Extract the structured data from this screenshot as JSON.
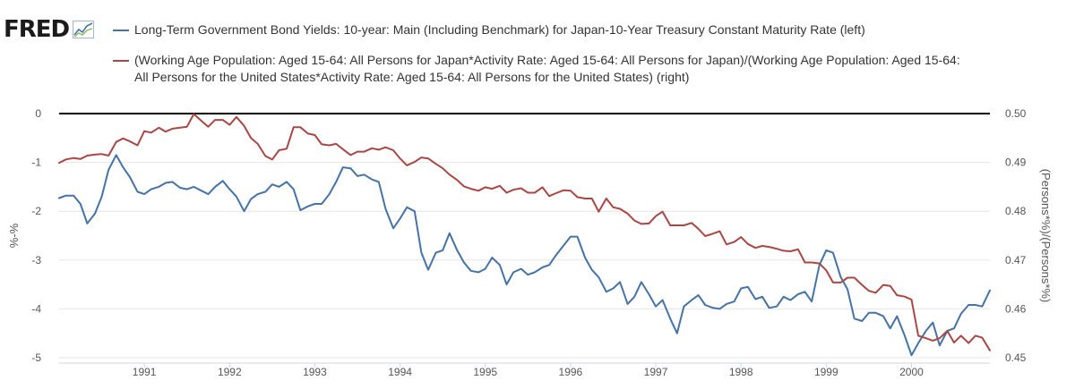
{
  "logo": {
    "text": "FRED",
    "icon": "chart-graph-icon"
  },
  "legend": [
    {
      "label": "Long-Term Government Bond Yields: 10-year: Main (Including Benchmark) for Japan-10-Year Treasury Constant Maturity Rate (left)",
      "color": "#4572a7"
    },
    {
      "label": "(Working Age Population: Aged 15-64: All Persons for Japan*Activity Rate: Aged 15-64: All Persons for Japan)/(Working Age Population: Aged 15-64: All Persons for the United States*Activity Rate: Aged 15-64: All Persons for the United States) (right)",
      "color": "#aa4643"
    }
  ],
  "chart_data": {
    "type": "line",
    "xlabel": "",
    "x_ticks": [
      "1991",
      "1992",
      "1993",
      "1994",
      "1995",
      "1996",
      "1997",
      "1998",
      "1999",
      "2000"
    ],
    "x_range": [
      1990.0,
      2000.92
    ],
    "y_left": {
      "label": "%-%",
      "range": [
        -5,
        0
      ],
      "ticks": [
        "0",
        "-1",
        "-2",
        "-3",
        "-4",
        "-5"
      ]
    },
    "y_right": {
      "label": "(Persons*%)/(Persons*%)",
      "range": [
        0.45,
        0.5
      ],
      "ticks": [
        "0.50",
        "0.49",
        "0.48",
        "0.47",
        "0.46",
        "0.45"
      ]
    },
    "zero_line": true,
    "series": [
      {
        "name": "Long-Term Government Bond Yields: 10-year: Main (Including Benchmark) for Japan-10-Year Treasury Constant Maturity Rate (left)",
        "axis": "left",
        "color": "#4572a7",
        "points": [
          [
            1990.0,
            -1.73
          ],
          [
            1990.08,
            -1.68
          ],
          [
            1990.17,
            -1.68
          ],
          [
            1990.25,
            -1.85
          ],
          [
            1990.33,
            -2.25
          ],
          [
            1990.42,
            -2.05
          ],
          [
            1990.5,
            -1.7
          ],
          [
            1990.58,
            -1.15
          ],
          [
            1990.67,
            -0.85
          ],
          [
            1990.75,
            -1.1
          ],
          [
            1990.83,
            -1.3
          ],
          [
            1990.92,
            -1.6
          ],
          [
            1991.0,
            -1.65
          ],
          [
            1991.08,
            -1.55
          ],
          [
            1991.17,
            -1.5
          ],
          [
            1991.25,
            -1.42
          ],
          [
            1991.33,
            -1.4
          ],
          [
            1991.42,
            -1.52
          ],
          [
            1991.5,
            -1.55
          ],
          [
            1991.58,
            -1.5
          ],
          [
            1991.67,
            -1.58
          ],
          [
            1991.75,
            -1.65
          ],
          [
            1991.83,
            -1.5
          ],
          [
            1991.92,
            -1.38
          ],
          [
            1992.0,
            -1.55
          ],
          [
            1992.08,
            -1.7
          ],
          [
            1992.17,
            -2.0
          ],
          [
            1992.25,
            -1.75
          ],
          [
            1992.33,
            -1.65
          ],
          [
            1992.42,
            -1.6
          ],
          [
            1992.5,
            -1.45
          ],
          [
            1992.58,
            -1.5
          ],
          [
            1992.67,
            -1.4
          ],
          [
            1992.75,
            -1.55
          ],
          [
            1992.83,
            -1.98
          ],
          [
            1992.92,
            -1.9
          ],
          [
            1993.0,
            -1.85
          ],
          [
            1993.08,
            -1.85
          ],
          [
            1993.17,
            -1.65
          ],
          [
            1993.25,
            -1.4
          ],
          [
            1993.33,
            -1.1
          ],
          [
            1993.42,
            -1.12
          ],
          [
            1993.5,
            -1.28
          ],
          [
            1993.58,
            -1.25
          ],
          [
            1993.67,
            -1.35
          ],
          [
            1993.75,
            -1.4
          ],
          [
            1993.83,
            -1.95
          ],
          [
            1993.92,
            -2.35
          ],
          [
            1994.0,
            -2.15
          ],
          [
            1994.08,
            -1.92
          ],
          [
            1994.17,
            -2.0
          ],
          [
            1994.25,
            -2.85
          ],
          [
            1994.33,
            -3.2
          ],
          [
            1994.42,
            -2.85
          ],
          [
            1994.5,
            -2.8
          ],
          [
            1994.58,
            -2.45
          ],
          [
            1994.67,
            -2.8
          ],
          [
            1994.75,
            -3.05
          ],
          [
            1994.83,
            -3.22
          ],
          [
            1994.92,
            -3.25
          ],
          [
            1995.0,
            -3.18
          ],
          [
            1995.08,
            -2.95
          ],
          [
            1995.17,
            -3.1
          ],
          [
            1995.25,
            -3.5
          ],
          [
            1995.33,
            -3.25
          ],
          [
            1995.42,
            -3.18
          ],
          [
            1995.5,
            -3.3
          ],
          [
            1995.58,
            -3.25
          ],
          [
            1995.67,
            -3.15
          ],
          [
            1995.75,
            -3.1
          ],
          [
            1995.83,
            -2.9
          ],
          [
            1995.92,
            -2.7
          ],
          [
            1996.0,
            -2.52
          ],
          [
            1996.08,
            -2.52
          ],
          [
            1996.17,
            -2.95
          ],
          [
            1996.25,
            -3.2
          ],
          [
            1996.33,
            -3.35
          ],
          [
            1996.42,
            -3.65
          ],
          [
            1996.5,
            -3.58
          ],
          [
            1996.58,
            -3.45
          ],
          [
            1996.67,
            -3.9
          ],
          [
            1996.75,
            -3.75
          ],
          [
            1996.83,
            -3.45
          ],
          [
            1996.92,
            -3.7
          ],
          [
            1997.0,
            -3.95
          ],
          [
            1997.08,
            -3.82
          ],
          [
            1997.17,
            -4.2
          ],
          [
            1997.25,
            -4.5
          ],
          [
            1997.33,
            -3.95
          ],
          [
            1997.42,
            -3.82
          ],
          [
            1997.5,
            -3.72
          ],
          [
            1997.58,
            -3.92
          ],
          [
            1997.67,
            -3.98
          ],
          [
            1997.75,
            -4.0
          ],
          [
            1997.83,
            -3.9
          ],
          [
            1997.92,
            -3.85
          ],
          [
            1998.0,
            -3.58
          ],
          [
            1998.08,
            -3.55
          ],
          [
            1998.17,
            -3.8
          ],
          [
            1998.25,
            -3.75
          ],
          [
            1998.33,
            -3.98
          ],
          [
            1998.42,
            -3.95
          ],
          [
            1998.5,
            -3.75
          ],
          [
            1998.58,
            -3.82
          ],
          [
            1998.67,
            -3.7
          ],
          [
            1998.75,
            -3.65
          ],
          [
            1998.83,
            -3.85
          ],
          [
            1998.92,
            -3.1
          ],
          [
            1999.0,
            -2.8
          ],
          [
            1999.08,
            -2.85
          ],
          [
            1999.17,
            -3.35
          ],
          [
            1999.25,
            -3.6
          ],
          [
            1999.33,
            -4.2
          ],
          [
            1999.42,
            -4.25
          ],
          [
            1999.5,
            -4.08
          ],
          [
            1999.58,
            -4.08
          ],
          [
            1999.67,
            -4.15
          ],
          [
            1999.75,
            -4.4
          ],
          [
            1999.83,
            -4.15
          ],
          [
            1999.92,
            -4.55
          ],
          [
            2000.0,
            -4.95
          ],
          [
            2000.08,
            -4.7
          ],
          [
            2000.17,
            -4.45
          ],
          [
            2000.25,
            -4.28
          ],
          [
            2000.33,
            -4.75
          ],
          [
            2000.42,
            -4.45
          ],
          [
            2000.5,
            -4.4
          ],
          [
            2000.58,
            -4.1
          ],
          [
            2000.67,
            -3.92
          ],
          [
            2000.75,
            -3.92
          ],
          [
            2000.83,
            -3.95
          ],
          [
            2000.92,
            -3.62
          ]
        ]
      },
      {
        "name": "(Working Age Population: Aged 15-64: All Persons for Japan*Activity Rate: Aged 15-64: All Persons for Japan)/(Working Age Population: Aged 15-64: All Persons for the United States*Activity Rate: Aged 15-64: All Persons for the United States) (right)",
        "axis": "right",
        "color": "#aa4643",
        "points": [
          [
            1990.0,
            0.4899
          ],
          [
            1990.08,
            0.4906
          ],
          [
            1990.17,
            0.4909
          ],
          [
            1990.25,
            0.4907
          ],
          [
            1990.33,
            0.4914
          ],
          [
            1990.42,
            0.4916
          ],
          [
            1990.5,
            0.4917
          ],
          [
            1990.58,
            0.4914
          ],
          [
            1990.67,
            0.4942
          ],
          [
            1990.75,
            0.4949
          ],
          [
            1990.83,
            0.4943
          ],
          [
            1990.92,
            0.4935
          ],
          [
            1991.0,
            0.4964
          ],
          [
            1991.08,
            0.4961
          ],
          [
            1991.17,
            0.4971
          ],
          [
            1991.25,
            0.4963
          ],
          [
            1991.33,
            0.4969
          ],
          [
            1991.42,
            0.4971
          ],
          [
            1991.5,
            0.4973
          ],
          [
            1991.58,
            0.4999
          ],
          [
            1991.67,
            0.4985
          ],
          [
            1991.75,
            0.4973
          ],
          [
            1991.83,
            0.4987
          ],
          [
            1991.92,
            0.4987
          ],
          [
            1992.0,
            0.4977
          ],
          [
            1992.08,
            0.4993
          ],
          [
            1992.17,
            0.4975
          ],
          [
            1992.25,
            0.495
          ],
          [
            1992.33,
            0.4938
          ],
          [
            1992.42,
            0.4913
          ],
          [
            1992.5,
            0.4906
          ],
          [
            1992.58,
            0.4925
          ],
          [
            1992.67,
            0.4928
          ],
          [
            1992.75,
            0.4972
          ],
          [
            1992.83,
            0.4972
          ],
          [
            1992.92,
            0.4959
          ],
          [
            1993.0,
            0.4956
          ],
          [
            1993.08,
            0.4937
          ],
          [
            1993.17,
            0.4935
          ],
          [
            1993.25,
            0.4938
          ],
          [
            1993.33,
            0.4927
          ],
          [
            1993.42,
            0.4915
          ],
          [
            1993.5,
            0.4922
          ],
          [
            1993.58,
            0.4922
          ],
          [
            1993.67,
            0.4929
          ],
          [
            1993.75,
            0.4926
          ],
          [
            1993.83,
            0.4931
          ],
          [
            1993.92,
            0.4925
          ],
          [
            1994.0,
            0.4908
          ],
          [
            1994.08,
            0.4894
          ],
          [
            1994.17,
            0.4901
          ],
          [
            1994.25,
            0.491
          ],
          [
            1994.33,
            0.4908
          ],
          [
            1994.42,
            0.4897
          ],
          [
            1994.5,
            0.4888
          ],
          [
            1994.58,
            0.4875
          ],
          [
            1994.67,
            0.4864
          ],
          [
            1994.75,
            0.4851
          ],
          [
            1994.83,
            0.4846
          ],
          [
            1994.92,
            0.4842
          ],
          [
            1995.0,
            0.4849
          ],
          [
            1995.08,
            0.4846
          ],
          [
            1995.17,
            0.4852
          ],
          [
            1995.25,
            0.4838
          ],
          [
            1995.33,
            0.4844
          ],
          [
            1995.42,
            0.4847
          ],
          [
            1995.5,
            0.4838
          ],
          [
            1995.58,
            0.4838
          ],
          [
            1995.67,
            0.4849
          ],
          [
            1995.75,
            0.4831
          ],
          [
            1995.83,
            0.4837
          ],
          [
            1995.92,
            0.4843
          ],
          [
            1996.0,
            0.4842
          ],
          [
            1996.08,
            0.4829
          ],
          [
            1996.17,
            0.4826
          ],
          [
            1996.25,
            0.4826
          ],
          [
            1996.33,
            0.4799
          ],
          [
            1996.42,
            0.4826
          ],
          [
            1996.5,
            0.4808
          ],
          [
            1996.58,
            0.4805
          ],
          [
            1996.67,
            0.4795
          ],
          [
            1996.75,
            0.4781
          ],
          [
            1996.83,
            0.4774
          ],
          [
            1996.92,
            0.4775
          ],
          [
            1997.0,
            0.479
          ],
          [
            1997.08,
            0.4799
          ],
          [
            1997.17,
            0.4771
          ],
          [
            1997.25,
            0.4771
          ],
          [
            1997.33,
            0.4771
          ],
          [
            1997.42,
            0.4776
          ],
          [
            1997.5,
            0.4764
          ],
          [
            1997.58,
            0.4749
          ],
          [
            1997.67,
            0.4754
          ],
          [
            1997.75,
            0.4759
          ],
          [
            1997.83,
            0.4732
          ],
          [
            1997.92,
            0.4737
          ],
          [
            1998.0,
            0.4747
          ],
          [
            1998.08,
            0.4733
          ],
          [
            1998.17,
            0.4725
          ],
          [
            1998.25,
            0.4729
          ],
          [
            1998.33,
            0.4727
          ],
          [
            1998.42,
            0.4723
          ],
          [
            1998.5,
            0.4719
          ],
          [
            1998.58,
            0.4718
          ],
          [
            1998.67,
            0.4722
          ],
          [
            1998.75,
            0.4695
          ],
          [
            1998.83,
            0.4695
          ],
          [
            1998.92,
            0.4693
          ],
          [
            1999.0,
            0.4679
          ],
          [
            1999.08,
            0.4654
          ],
          [
            1999.17,
            0.4654
          ],
          [
            1999.25,
            0.4664
          ],
          [
            1999.33,
            0.4664
          ],
          [
            1999.42,
            0.4649
          ],
          [
            1999.5,
            0.4637
          ],
          [
            1999.58,
            0.4633
          ],
          [
            1999.67,
            0.4649
          ],
          [
            1999.75,
            0.4647
          ],
          [
            1999.83,
            0.4628
          ],
          [
            1999.92,
            0.4625
          ],
          [
            2000.0,
            0.4619
          ],
          [
            2000.08,
            0.4545
          ],
          [
            2000.17,
            0.454
          ],
          [
            2000.25,
            0.4535
          ],
          [
            2000.33,
            0.454
          ],
          [
            2000.42,
            0.4555
          ],
          [
            2000.5,
            0.4531
          ],
          [
            2000.58,
            0.4545
          ],
          [
            2000.67,
            0.453
          ],
          [
            2000.75,
            0.4545
          ],
          [
            2000.83,
            0.4541
          ],
          [
            2000.92,
            0.4515
          ]
        ]
      }
    ]
  }
}
